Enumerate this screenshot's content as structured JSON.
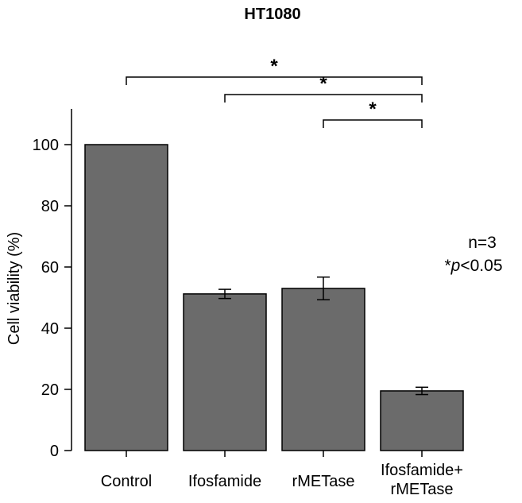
{
  "chart_data": {
    "type": "bar",
    "title": "HT1080",
    "xlabel": "",
    "ylabel": "Cell viability (%)",
    "ylim": [
      0,
      110
    ],
    "yticks": [
      0,
      20,
      40,
      60,
      80,
      100
    ],
    "grid": false,
    "categories": [
      [
        "Control"
      ],
      [
        "Ifosfamide"
      ],
      [
        "rMETase"
      ],
      [
        "Ifosfamide+",
        "rMETase"
      ]
    ],
    "values": [
      100,
      51.2,
      53.0,
      19.5
    ],
    "errors": [
      0,
      1.5,
      3.7,
      1.2
    ],
    "bar_color": "#6b6b6b",
    "significance": [
      {
        "from": 0,
        "to": 3,
        "label": "*"
      },
      {
        "from": 1,
        "to": 3,
        "label": "*"
      },
      {
        "from": 2,
        "to": 3,
        "label": "*"
      }
    ],
    "annotation": {
      "line1": "n=3",
      "line2_prefix": "*",
      "line2_italic": "p",
      "line2_suffix": "<0.05"
    }
  }
}
